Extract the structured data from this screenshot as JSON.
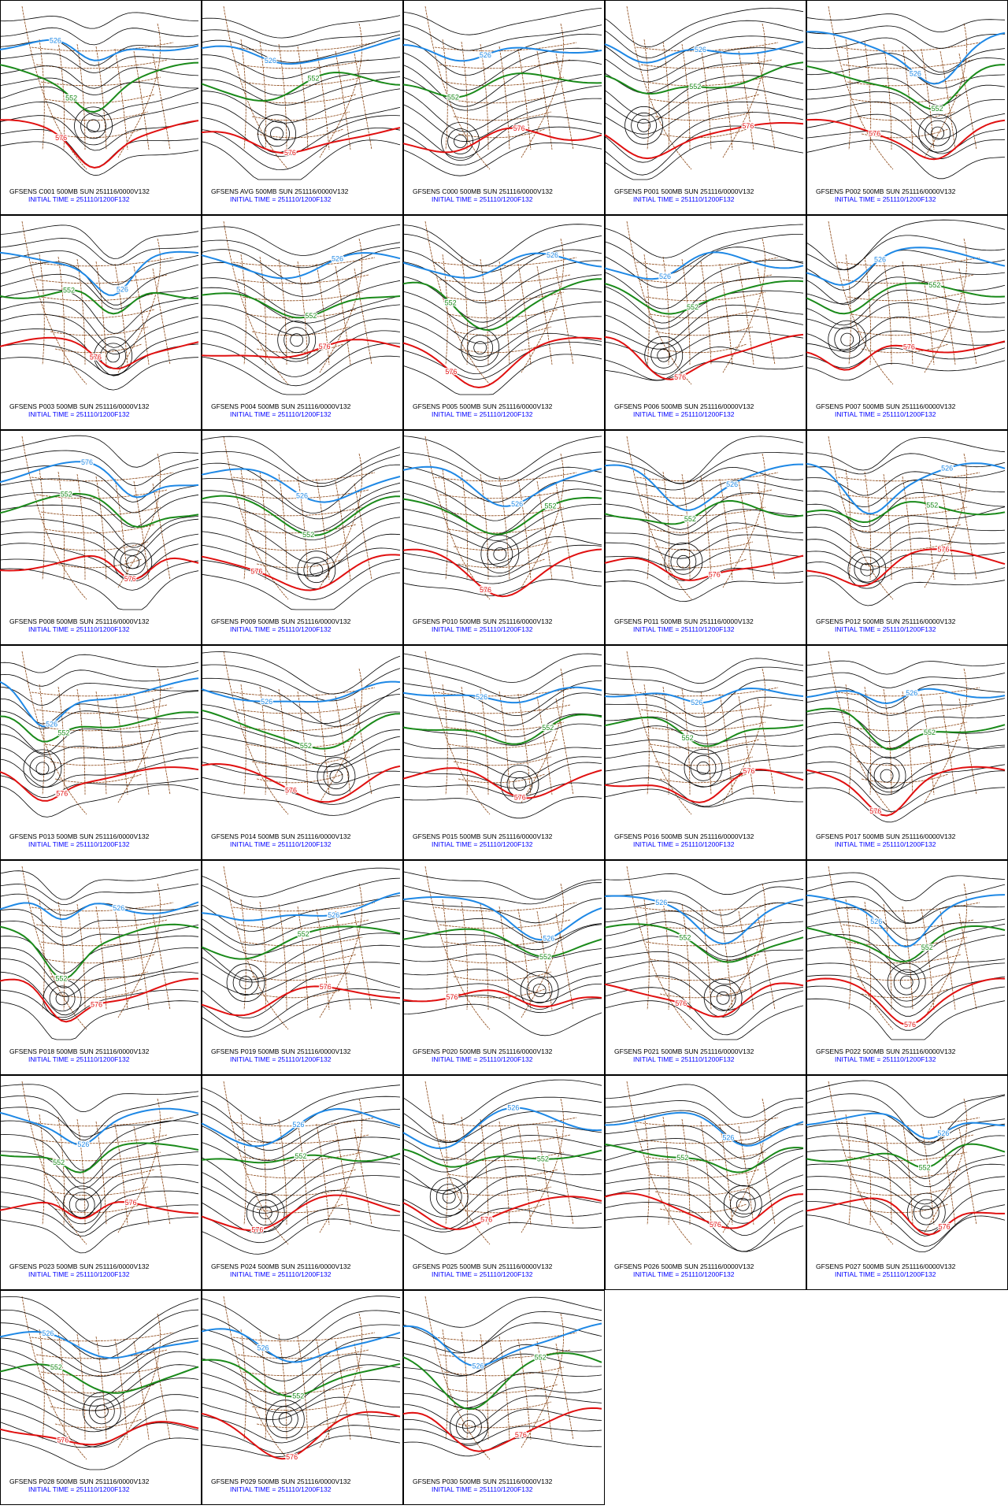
{
  "panels": [
    {
      "title": "GFSENS C001 500MB SUN 251116/0000V132",
      "initial_time": "INITIAL TIME = 251110/1200F132",
      "contour_labels": [
        "526",
        "552",
        "576"
      ]
    },
    {
      "title": "GFSENS AVG 500MB SUN 251116/0000V132",
      "initial_time": "INITIAL TIME = 251110/1200F132",
      "contour_labels": [
        "526",
        "552",
        "576"
      ]
    },
    {
      "title": "GFSENS C000 500MB SUN 251116/0000V132",
      "initial_time": "INITIAL TIME = 251110/1200F132",
      "contour_labels": [
        "526",
        "552",
        "576"
      ]
    },
    {
      "title": "GFSENS P001 500MB SUN 251116/0000V132",
      "initial_time": "INITIAL TIME = 251110/1200F132",
      "contour_labels": [
        "526",
        "552",
        "576"
      ]
    },
    {
      "title": "GFSENS P002 500MB SUN 251116/0000V132",
      "initial_time": "INITIAL TIME = 251110/1200F132",
      "contour_labels": [
        "526",
        "552",
        "576"
      ]
    },
    {
      "title": "GFSENS P003 500MB SUN 251116/0000V132",
      "initial_time": "INITIAL TIME = 251110/1200F132",
      "contour_labels": [
        "526",
        "552",
        "576"
      ]
    },
    {
      "title": "GFSENS P004 500MB SUN 251116/0000V132",
      "initial_time": "INITIAL TIME = 251110/1200F132",
      "contour_labels": [
        "526",
        "552",
        "576"
      ]
    },
    {
      "title": "GFSENS P005 500MB SUN 251116/0000V132",
      "initial_time": "INITIAL TIME = 251110/1200F132",
      "contour_labels": [
        "526",
        "552",
        "576"
      ]
    },
    {
      "title": "GFSENS P006 500MB SUN 251116/0000V132",
      "initial_time": "INITIAL TIME = 251110/1200F132",
      "contour_labels": [
        "526",
        "552",
        "576"
      ]
    },
    {
      "title": "GFSENS P007 500MB SUN 251116/0000V132",
      "initial_time": "INITIAL TIME = 251110/1200F132",
      "contour_labels": [
        "526",
        "552",
        "576"
      ]
    },
    {
      "title": "GFSENS P008 500MB SUN 251116/0000V132",
      "initial_time": "INITIAL TIME = 251110/1200F132",
      "contour_labels": [
        "576",
        "552",
        "576"
      ]
    },
    {
      "title": "GFSENS P009 500MB SUN 251116/0000V132",
      "initial_time": "INITIAL TIME = 251110/1200F132",
      "contour_labels": [
        "526",
        "552",
        "576"
      ]
    },
    {
      "title": "GFSENS P010 500MB SUN 251116/0000V132",
      "initial_time": "INITIAL TIME = 251110/1200F132",
      "contour_labels": [
        "526",
        "552",
        "576"
      ]
    },
    {
      "title": "GFSENS P011 500MB SUN 251116/0000V132",
      "initial_time": "INITIAL TIME = 251110/1200F132",
      "contour_labels": [
        "526",
        "552",
        "576"
      ]
    },
    {
      "title": "GFSENS P012 500MB SUN 251116/0000V132",
      "initial_time": "INITIAL TIME = 251110/1200F132",
      "contour_labels": [
        "526",
        "552",
        "576"
      ]
    },
    {
      "title": "GFSENS P013 500MB SUN 251116/0000V132",
      "initial_time": "INITIAL TIME = 251110/1200F132",
      "contour_labels": [
        "526",
        "552",
        "576"
      ]
    },
    {
      "title": "GFSENS P014 500MB SUN 251116/0000V132",
      "initial_time": "INITIAL TIME = 251110/1200F132",
      "contour_labels": [
        "526",
        "552",
        "576"
      ]
    },
    {
      "title": "GFSENS P015 500MB SUN 251116/0000V132",
      "initial_time": "INITIAL TIME = 251110/1200F132",
      "contour_labels": [
        "526",
        "552",
        "576"
      ]
    },
    {
      "title": "GFSENS P016 500MB SUN 251116/0000V132",
      "initial_time": "INITIAL TIME = 251110/1200F132",
      "contour_labels": [
        "526",
        "552",
        "576"
      ]
    },
    {
      "title": "GFSENS P017 500MB SUN 251116/0000V132",
      "initial_time": "INITIAL TIME = 251110/1200F132",
      "contour_labels": [
        "526",
        "552",
        "576"
      ]
    },
    {
      "title": "GFSENS P018 500MB SUN 251116/0000V132",
      "initial_time": "INITIAL TIME = 251110/1200F132",
      "contour_labels": [
        "526",
        "552",
        "576"
      ]
    },
    {
      "title": "GFSENS P019 500MB SUN 251116/0000V132",
      "initial_time": "INITIAL TIME = 251110/1200F132",
      "contour_labels": [
        "526",
        "552",
        "576"
      ]
    },
    {
      "title": "GFSENS P020 500MB SUN 251116/0000V132",
      "initial_time": "INITIAL TIME = 251110/1200F132",
      "contour_labels": [
        "526",
        "552",
        "576"
      ]
    },
    {
      "title": "GFSENS P021 500MB SUN 251116/0000V132",
      "initial_time": "INITIAL TIME = 251110/1200F132",
      "contour_labels": [
        "526",
        "552",
        "576"
      ]
    },
    {
      "title": "GFSENS P022 500MB SUN 251116/0000V132",
      "initial_time": "INITIAL TIME = 251110/1200F132",
      "contour_labels": [
        "526",
        "552",
        "576"
      ]
    },
    {
      "title": "GFSENS P023 500MB SUN 251116/0000V132",
      "initial_time": "INITIAL TIME = 251110/1200F132",
      "contour_labels": [
        "526",
        "552",
        "576"
      ]
    },
    {
      "title": "GFSENS P024 500MB SUN 251116/0000V132",
      "initial_time": "INITIAL TIME = 251110/1200F132",
      "contour_labels": [
        "526",
        "552",
        "576"
      ]
    },
    {
      "title": "GFSENS P025 500MB SUN 251116/0000V132",
      "initial_time": "INITIAL TIME = 251110/1200F132",
      "contour_labels": [
        "526",
        "552",
        "576"
      ]
    },
    {
      "title": "GFSENS P026 500MB SUN 251116/0000V132",
      "initial_time": "INITIAL TIME = 251110/1200F132",
      "contour_labels": [
        "526",
        "552",
        "576"
      ]
    },
    {
      "title": "GFSENS P027 500MB SUN 251116/0000V132",
      "initial_time": "INITIAL TIME = 251110/1200F132",
      "contour_labels": [
        "526",
        "552",
        "576"
      ]
    },
    {
      "title": "GFSENS P028 500MB SUN 251116/0000V132",
      "initial_time": "INITIAL TIME = 251110/1200F132",
      "contour_labels": [
        "526",
        "552",
        "576"
      ]
    },
    {
      "title": "GFSENS P029 500MB SUN 251116/0000V132",
      "initial_time": "INITIAL TIME = 251110/1200F132",
      "contour_labels": [
        "526",
        "552",
        "576"
      ]
    },
    {
      "title": "GFSENS P030 500MB SUN 251116/0000V132",
      "initial_time": "INITIAL TIME = 251110/1200F132",
      "contour_labels": [
        "526",
        "552",
        "576"
      ]
    }
  ]
}
